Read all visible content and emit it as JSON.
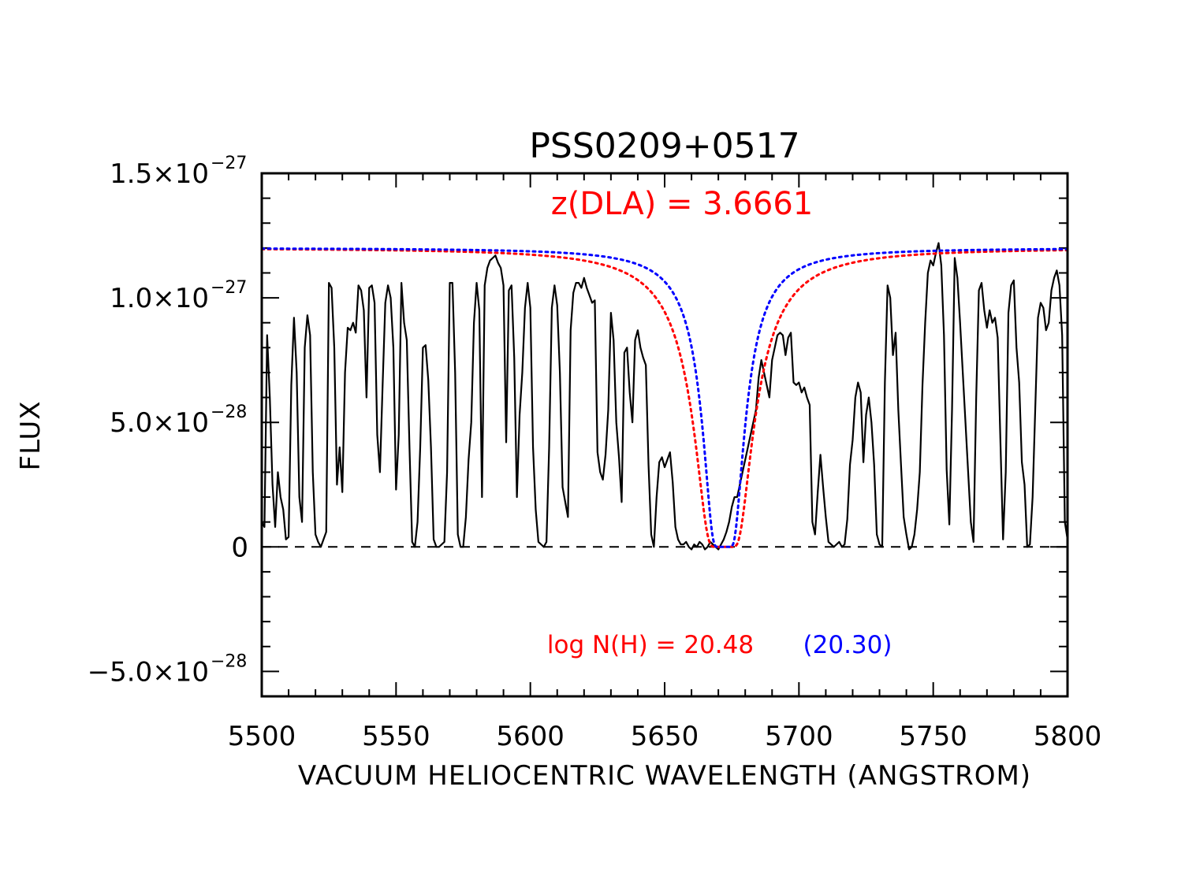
{
  "chart_data": {
    "type": "line",
    "title": "PSS0209+0517",
    "xlabel": "VACUUM HELIOCENTRIC WAVELENGTH (ANGSTROM)",
    "ylabel": "FLUX",
    "xlim": [
      5500,
      5800
    ],
    "ylim": [
      -6e-28,
      1.5e-27
    ],
    "x_ticks": [
      {
        "value": 5500,
        "label": "5500"
      },
      {
        "value": 5550,
        "label": "5550"
      },
      {
        "value": 5600,
        "label": "5600"
      },
      {
        "value": 5650,
        "label": "5650"
      },
      {
        "value": 5700,
        "label": "5700"
      },
      {
        "value": 5750,
        "label": "5750"
      },
      {
        "value": 5800,
        "label": "5800"
      }
    ],
    "y_ticks": [
      {
        "value": -5e-28,
        "mantissa": "−5.0×10",
        "exponent": "−28"
      },
      {
        "value": 0,
        "mantissa": "0",
        "exponent": ""
      },
      {
        "value": 5e-28,
        "mantissa": "5.0×10",
        "exponent": "−28"
      },
      {
        "value": 1e-27,
        "mantissa": "1.0×10",
        "exponent": "−27"
      },
      {
        "value": 1.5e-27,
        "mantissa": "1.5×10",
        "exponent": "−27"
      }
    ],
    "zero_line": {
      "y": 0,
      "style": "dashed",
      "color": "#000000"
    },
    "spectrum": {
      "color": "#000000",
      "unit_scale": 1e-28,
      "x": [
        5500,
        5501,
        5502,
        5503,
        5504,
        5505,
        5506,
        5507,
        5508,
        5509,
        5510,
        5511,
        5512,
        5513,
        5514,
        5515,
        5516,
        5517,
        5518,
        5519,
        5520,
        5521,
        5522,
        5523,
        5524,
        5525,
        5526,
        5527,
        5528,
        5529,
        5530,
        5531,
        5532,
        5533,
        5534,
        5535,
        5536,
        5537,
        5538,
        5539,
        5540,
        5541,
        5542,
        5543,
        5544,
        5545,
        5546,
        5547,
        5548,
        5549,
        5550,
        5551,
        5552,
        5553,
        5554,
        5555,
        5556,
        5557,
        5558,
        5559,
        5560,
        5561,
        5562,
        5563,
        5564,
        5565,
        5566,
        5567,
        5568,
        5569,
        5570,
        5571,
        5572,
        5573,
        5574,
        5575,
        5576,
        5577,
        5578,
        5579,
        5580,
        5581,
        5582,
        5583,
        5584,
        5585,
        5586,
        5587,
        5588,
        5589,
        5590,
        5591,
        5592,
        5593,
        5594,
        5595,
        5596,
        5597,
        5598,
        5599,
        5600,
        5601,
        5602,
        5603,
        5604,
        5605,
        5606,
        5607,
        5608,
        5609,
        5610,
        5611,
        5612,
        5613,
        5614,
        5615,
        5616,
        5617,
        5618,
        5619,
        5620,
        5621,
        5622,
        5623,
        5624,
        5625,
        5626,
        5627,
        5628,
        5629,
        5630,
        5631,
        5632,
        5633,
        5634,
        5635,
        5636,
        5637,
        5638,
        5639,
        5640,
        5641,
        5642,
        5643,
        5644,
        5645,
        5646,
        5647,
        5648,
        5649,
        5650,
        5651,
        5652,
        5653,
        5654,
        5655,
        5656,
        5657,
        5658,
        5659,
        5660,
        5661,
        5662,
        5663,
        5664,
        5665,
        5666,
        5667,
        5668,
        5669,
        5670,
        5671,
        5672,
        5673,
        5674,
        5675,
        5676,
        5677,
        5678,
        5679,
        5680,
        5681,
        5682,
        5683,
        5684,
        5685,
        5686,
        5687,
        5688,
        5689,
        5690,
        5691,
        5692,
        5693,
        5694,
        5695,
        5696,
        5697,
        5698,
        5699,
        5700,
        5701,
        5702,
        5703,
        5704,
        5705,
        5706,
        5707,
        5708,
        5709,
        5710,
        5711,
        5712,
        5713,
        5714,
        5715,
        5716,
        5717,
        5718,
        5719,
        5720,
        5721,
        5722,
        5723,
        5724,
        5725,
        5726,
        5727,
        5728,
        5729,
        5730,
        5731,
        5732,
        5733,
        5734,
        5735,
        5736,
        5737,
        5738,
        5739,
        5740,
        5741,
        5742,
        5743,
        5744,
        5745,
        5746,
        5747,
        5748,
        5749,
        5750,
        5751,
        5752,
        5753,
        5754,
        5755,
        5756,
        5757,
        5758,
        5759,
        5760,
        5761,
        5762,
        5763,
        5764,
        5765,
        5766,
        5767,
        5768,
        5769,
        5770,
        5771,
        5772,
        5773,
        5774,
        5775,
        5776,
        5777,
        5778,
        5779,
        5780,
        5781,
        5782,
        5783,
        5784,
        5785,
        5786,
        5787,
        5788,
        5789,
        5790,
        5791,
        5792,
        5793,
        5794,
        5795,
        5796,
        5797,
        5798,
        5799,
        5800
      ],
      "y": [
        1.0,
        0.8,
        8.5,
        6.0,
        2.5,
        0.8,
        3.0,
        2.0,
        1.5,
        0.3,
        0.4,
        6.5,
        9.2,
        7.0,
        2.0,
        1.0,
        8.0,
        9.3,
        8.5,
        3.0,
        0.5,
        0.2,
        0.0,
        0.3,
        0.6,
        10.6,
        10.4,
        8.0,
        2.5,
        4.0,
        2.2,
        7.0,
        8.8,
        8.7,
        9.0,
        8.6,
        10.5,
        10.3,
        9.5,
        6.0,
        10.4,
        10.5,
        9.8,
        4.5,
        3.0,
        6.5,
        9.8,
        10.5,
        10.0,
        8.0,
        2.3,
        4.5,
        10.6,
        9.0,
        8.3,
        4.0,
        0.2,
        0.0,
        1.0,
        4.0,
        8.0,
        8.1,
        6.7,
        4.0,
        0.3,
        0.0,
        0.0,
        0.1,
        0.2,
        3.0,
        10.6,
        10.6,
        7.0,
        0.5,
        0.0,
        0.0,
        1.2,
        3.5,
        5.0,
        9.0,
        10.6,
        9.5,
        2.0,
        10.5,
        11.2,
        11.5,
        11.6,
        11.7,
        11.4,
        11.2,
        10.5,
        4.2,
        10.3,
        10.5,
        7.6,
        2.0,
        5.3,
        7.0,
        9.6,
        10.6,
        9.6,
        4.0,
        1.5,
        0.2,
        0.1,
        0.0,
        0.2,
        4.0,
        9.6,
        10.5,
        9.7,
        7.0,
        2.4,
        1.8,
        1.2,
        8.7,
        10.2,
        10.6,
        10.6,
        10.4,
        10.8,
        10.4,
        10.1,
        9.8,
        9.9,
        3.8,
        3.0,
        2.7,
        3.7,
        5.5,
        9.4,
        8.3,
        5.0,
        3.6,
        1.8,
        7.8,
        8.0,
        6.2,
        5.0,
        8.3,
        8.7,
        8.0,
        7.6,
        7.3,
        3.3,
        0.5,
        0.0,
        2.0,
        3.4,
        3.6,
        3.2,
        3.5,
        3.8,
        2.6,
        0.8,
        0.3,
        0.1,
        0.1,
        0.2,
        0.0,
        -0.1,
        0.1,
        0.0,
        0.2,
        0.1,
        -0.1,
        0.0,
        0.2,
        0.1,
        0.0,
        -0.1,
        0.1,
        0.3,
        0.6,
        1.0,
        1.6,
        2.0,
        2.0,
        2.5,
        3.0,
        3.5,
        4.0,
        4.5,
        5.0,
        5.5,
        6.8,
        7.5,
        7.0,
        6.5,
        6.0,
        7.5,
        8.0,
        8.5,
        8.6,
        8.5,
        7.7,
        8.4,
        8.6,
        6.6,
        6.5,
        6.6,
        6.2,
        6.4,
        6.0,
        5.7,
        1.0,
        0.5,
        2.2,
        3.7,
        2.4,
        1.2,
        0.2,
        0.1,
        0.0,
        0.1,
        0.2,
        0.0,
        0.1,
        1.1,
        3.3,
        4.3,
        6.0,
        6.6,
        6.2,
        3.4,
        5.3,
        6.0,
        5.0,
        3.3,
        0.5,
        0.1,
        0.0,
        6.6,
        10.5,
        10.0,
        7.7,
        8.6,
        5.5,
        3.3,
        1.2,
        0.5,
        -0.1,
        0.0,
        0.5,
        1.5,
        3.0,
        6.5,
        9.0,
        11.0,
        11.5,
        11.3,
        11.8,
        12.2,
        11.3,
        8.5,
        3.1,
        0.9,
        5.5,
        11.6,
        10.8,
        9.0,
        7.0,
        5.0,
        3.0,
        1.0,
        0.2,
        6.0,
        10.3,
        10.6,
        9.5,
        8.8,
        9.5,
        9.0,
        9.2,
        8.4,
        4.3,
        0.3,
        3.0,
        9.4,
        10.5,
        10.7,
        8.0,
        6.6,
        3.4,
        2.5,
        0.0,
        0.1,
        2.0,
        5.6,
        9.2,
        9.8,
        9.6,
        8.7,
        9.0,
        10.3,
        10.8,
        11.1,
        10.5,
        8.5,
        1.0,
        0.3
      ]
    },
    "fits": [
      {
        "name": "log N(H) = 20.48",
        "color": "#ff0000",
        "style": "dotted",
        "center": 5672.0,
        "continuum": 12.0,
        "width": 4.4,
        "strength": 1.0
      },
      {
        "name": "(20.30)",
        "color": "#0000ff",
        "style": "dotted",
        "center": 5672.0,
        "continuum": 12.0,
        "width": 3.1,
        "strength": 1.0
      }
    ],
    "annotations": [
      {
        "text": "z(DLA) = 3.6661",
        "color": "#ff0000"
      },
      {
        "text": "log N(H) = 20.48",
        "color": "#ff0000"
      },
      {
        "text": "(20.30)",
        "color": "#0000ff"
      }
    ]
  }
}
